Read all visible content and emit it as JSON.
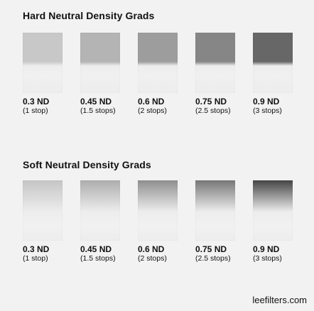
{
  "hard": {
    "title": "Hard Neutral Density Grads",
    "items": [
      {
        "label": "0.3 ND",
        "sub": "(1 stop)",
        "color": "#c8c8c8"
      },
      {
        "label": "0.45 ND",
        "sub": "(1.5 stops)",
        "color": "#b4b4b4"
      },
      {
        "label": "0.6 ND",
        "sub": "(2 stops)",
        "color": "#9d9d9d"
      },
      {
        "label": "0.75 ND",
        "sub": "(2.5 stops)",
        "color": "#868686"
      },
      {
        "label": "0.9 ND",
        "sub": "(3 stops)",
        "color": "#676767"
      }
    ]
  },
  "soft": {
    "title": "Soft Neutral Density Grads",
    "items": [
      {
        "label": "0.3 ND",
        "sub": "(1 stop)",
        "color": "#c5c5c5"
      },
      {
        "label": "0.45 ND",
        "sub": "(1.5 stops)",
        "color": "#adadad"
      },
      {
        "label": "0.6 ND",
        "sub": "(2 stops)",
        "color": "#8f8f8f"
      },
      {
        "label": "0.75 ND",
        "sub": "(2.5 stops)",
        "color": "#777777"
      },
      {
        "label": "0.9 ND",
        "sub": "(3 stops)",
        "color": "#454545"
      }
    ]
  },
  "brand": "leefilters.com"
}
